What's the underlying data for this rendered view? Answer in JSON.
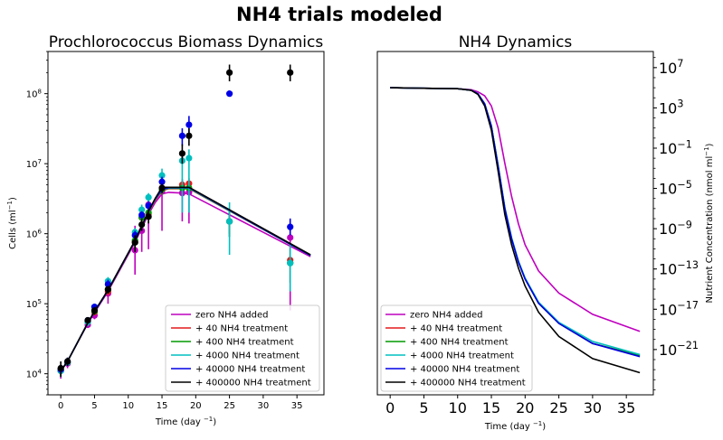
{
  "figure": {
    "suptitle": "NH4 trials modeled"
  },
  "chart_data": [
    {
      "type": "line",
      "title": "Prochlorococcus Biomass Dynamics",
      "xlabel": "Time (day $^{-1}$)",
      "ylabel": "Cells (ml$^{-1}$)",
      "yscale": "log",
      "xlim": [
        -1.9,
        39.0
      ],
      "ylim": [
        5000,
        400000000
      ],
      "xticks": [
        "0",
        "5",
        "10",
        "15",
        "20",
        "25",
        "30",
        "35"
      ],
      "yticks": [
        "10^4",
        "10^5",
        "10^6",
        "10^7",
        "10^8"
      ],
      "legend_position": "lower-right",
      "series": [
        {
          "name": "zero NH4 added",
          "color": "#bf00bf",
          "model_x": [
            0,
            1,
            4,
            5,
            7,
            11,
            12,
            13,
            14,
            15,
            16,
            18,
            19,
            37
          ],
          "model_y": [
            11000,
            15000,
            52000,
            75000,
            150000,
            750000,
            1200000,
            1900000,
            2800000,
            3700000,
            3900000,
            3800000,
            3700000,
            470000
          ],
          "obs_x": [
            0,
            1,
            4,
            5,
            7,
            11,
            12,
            13,
            15,
            18,
            19,
            25,
            34
          ],
          "obs_y": [
            11000,
            14000,
            50000,
            68000,
            140000,
            580000,
            1100000,
            2600000,
            4000000,
            3800000,
            3900000,
            1500000,
            880000
          ],
          "err_low": [
            8500,
            12000,
            45000,
            60000,
            100000,
            260000,
            550000,
            600000,
            1100000,
            1500000,
            1400000,
            900000,
            80000
          ],
          "err_high": [
            13000,
            16000,
            55000,
            76000,
            200000,
            1300000,
            1800000,
            3500000,
            6000000,
            6000000,
            5500000,
            2200000,
            1600000
          ]
        },
        {
          "name": " + 40 NH4 treatment",
          "color": "#e31a1c",
          "model_x": [
            0,
            1,
            4,
            5,
            7,
            11,
            12,
            13,
            14,
            15,
            16,
            18,
            19,
            37
          ],
          "model_y": [
            11000,
            15000,
            53000,
            77000,
            155000,
            780000,
            1250000,
            2000000,
            3000000,
            4100000,
            4400000,
            4400000,
            4400000,
            490000
          ],
          "obs_x": [
            0,
            1,
            4,
            5,
            7,
            11,
            12,
            13,
            15,
            18,
            19,
            25,
            34
          ],
          "obs_y": [
            11500,
            14500,
            56000,
            76000,
            150000,
            760000,
            1700000,
            1900000,
            4500000,
            5000000,
            5200000,
            1500000,
            420000
          ],
          "err_low": [
            9500,
            13000,
            50000,
            68000,
            130000,
            600000,
            1400000,
            1600000,
            3800000,
            4000000,
            4200000,
            1000000,
            200000
          ],
          "err_high": [
            13500,
            16000,
            62000,
            84000,
            170000,
            950000,
            2000000,
            2300000,
            5200000,
            6000000,
            6200000,
            2000000,
            700000
          ]
        },
        {
          "name": " + 400 NH4 treatment",
          "color": "#009900",
          "model_x": [
            0,
            1,
            4,
            5,
            7,
            11,
            12,
            13,
            14,
            15,
            16,
            18,
            19,
            37
          ],
          "model_y": [
            11000,
            15000,
            53000,
            77000,
            155000,
            790000,
            1260000,
            2050000,
            3100000,
            4200000,
            4450000,
            4450000,
            4450000,
            490000
          ],
          "obs_x": [
            0,
            1,
            4,
            5,
            7,
            11,
            12,
            13,
            15,
            18,
            19,
            25,
            34
          ],
          "obs_y": [
            11000,
            14500,
            55000,
            78000,
            160000,
            800000,
            1700000,
            2000000,
            4300000,
            4500000,
            4500000,
            1500000,
            380000
          ],
          "err_low": [
            9500,
            13000,
            50000,
            70000,
            140000,
            650000,
            1400000,
            1700000,
            3600000,
            3800000,
            3800000,
            900000,
            200000
          ],
          "err_high": [
            13000,
            16000,
            60000,
            86000,
            180000,
            950000,
            2000000,
            2400000,
            5000000,
            5200000,
            5200000,
            2200000,
            600000
          ]
        },
        {
          "name": " + 4000 NH4 treatment",
          "color": "#00bfbf",
          "model_x": [
            0,
            1,
            4,
            5,
            7,
            11,
            12,
            13,
            14,
            15,
            16,
            18,
            19,
            37
          ],
          "model_y": [
            11000,
            15000,
            53000,
            77000,
            156000,
            790000,
            1270000,
            2050000,
            3100000,
            4250000,
            4500000,
            4500000,
            4500000,
            490000
          ],
          "obs_x": [
            0,
            1,
            4,
            5,
            7,
            11,
            12,
            13,
            15,
            18,
            19,
            25,
            34
          ],
          "obs_y": [
            11000,
            14500,
            55000,
            90000,
            210000,
            1050000,
            2200000,
            3300000,
            6800000,
            11000000,
            12000000,
            1500000,
            380000
          ],
          "err_low": [
            9000,
            13000,
            48000,
            80000,
            180000,
            900000,
            1800000,
            2800000,
            5000000,
            2000000,
            2000000,
            500000,
            150000
          ],
          "err_high": [
            13000,
            16000,
            62000,
            100000,
            240000,
            1200000,
            2600000,
            3800000,
            8500000,
            15000000,
            16000000,
            2800000,
            700000
          ]
        },
        {
          "name": " + 40000 NH4 treatment",
          "color": "#0000e6",
          "model_x": [
            0,
            1,
            4,
            5,
            7,
            11,
            12,
            13,
            14,
            15,
            16,
            18,
            19,
            37
          ],
          "model_y": [
            11000,
            15000,
            53000,
            77000,
            156000,
            795000,
            1280000,
            2080000,
            3150000,
            4300000,
            4550000,
            4550000,
            4550000,
            490000
          ],
          "obs_x": [
            0,
            1,
            4,
            5,
            7,
            11,
            12,
            13,
            15,
            18,
            19,
            25,
            34
          ],
          "obs_y": [
            11500,
            15000,
            58000,
            90000,
            190000,
            950000,
            1850000,
            2500000,
            5500000,
            25000000,
            36000000,
            100000000,
            1250000
          ],
          "err_low": [
            10000,
            13000,
            52000,
            80000,
            160000,
            800000,
            1600000,
            2100000,
            4500000,
            18000000,
            26000000,
            95000000,
            950000
          ],
          "err_high": [
            13000,
            17000,
            64000,
            100000,
            220000,
            1100000,
            2100000,
            2900000,
            6500000,
            32000000,
            48000000,
            105000000,
            1650000
          ]
        },
        {
          "name": " + 400000 NH4 treatment",
          "color": "#000000",
          "model_x": [
            0,
            1,
            4,
            5,
            7,
            11,
            12,
            13,
            14,
            15,
            16,
            18,
            19,
            37
          ],
          "model_y": [
            11000,
            15000,
            53000,
            78000,
            157000,
            800000,
            1290000,
            2100000,
            3200000,
            4600000,
            4600000,
            4600000,
            4600000,
            500000
          ],
          "obs_x": [
            0,
            1,
            4,
            5,
            7,
            11,
            12,
            13,
            15,
            18,
            19,
            25,
            34
          ],
          "obs_y": [
            12000,
            15000,
            58000,
            80000,
            160000,
            750000,
            1350000,
            1750000,
            4500000,
            14000000,
            25000000,
            200000000,
            200000000
          ],
          "err_low": [
            9000,
            13000,
            52000,
            70000,
            140000,
            550000,
            1100000,
            1400000,
            3800000,
            10000000,
            18000000,
            150000000,
            150000000
          ],
          "err_high": [
            15000,
            17000,
            64000,
            90000,
            180000,
            950000,
            1600000,
            2100000,
            5200000,
            19000000,
            32000000,
            260000000,
            260000000
          ]
        }
      ]
    },
    {
      "type": "line",
      "title": "NH4 Dynamics",
      "xlabel": "Time (day $^{-1}$)",
      "ylabel": "Nutrient Concentration (nmol ml$^{-1}$)",
      "yscale": "log",
      "xlim": [
        -1.9,
        39.0
      ],
      "ylim_log10": [
        -25.5,
        8.6
      ],
      "xticks": [
        "0",
        "5",
        "10",
        "15",
        "20",
        "25",
        "30",
        "35"
      ],
      "yticks": [
        "10^7",
        "10^3",
        "10^-1",
        "10^-5",
        "10^-9",
        "10^-13",
        "10^-17",
        "10^-21"
      ],
      "legend_position": "lower-left",
      "series": [
        {
          "name": "zero NH4 added",
          "color": "#bf00bf",
          "x": [
            0,
            5,
            10,
            12,
            13,
            14,
            15,
            16,
            17,
            18,
            19,
            20,
            22,
            25,
            30,
            37
          ],
          "log10_y": [
            5.0,
            4.95,
            4.9,
            4.8,
            4.6,
            4.2,
            3.2,
            1.0,
            -2.5,
            -5.8,
            -8.5,
            -10.6,
            -13.2,
            -15.4,
            -17.5,
            -19.2
          ]
        },
        {
          "name": " + 40 NH4 treatment",
          "color": "#e31a1c",
          "x": [
            0,
            5,
            10,
            12,
            13,
            14,
            15,
            16,
            17,
            18,
            19,
            20,
            22,
            25,
            30,
            37
          ],
          "log10_y": [
            5.0,
            4.95,
            4.9,
            4.75,
            4.4,
            3.4,
            1.2,
            -2.8,
            -7.0,
            -10.0,
            -12.3,
            -14.0,
            -16.4,
            -18.4,
            -20.4,
            -21.6
          ]
        },
        {
          "name": " + 400 NH4 treatment",
          "color": "#009900",
          "x": [
            0,
            5,
            10,
            12,
            13,
            14,
            15,
            16,
            17,
            18,
            19,
            20,
            22,
            25,
            30,
            37
          ],
          "log10_y": [
            5.0,
            4.95,
            4.9,
            4.75,
            4.4,
            3.4,
            1.2,
            -2.8,
            -7.0,
            -10.0,
            -12.3,
            -14.0,
            -16.4,
            -18.4,
            -20.4,
            -21.6
          ]
        },
        {
          "name": " + 4000 NH4 treatment",
          "color": "#00bfbf",
          "x": [
            0,
            5,
            10,
            12,
            13,
            14,
            15,
            16,
            17,
            18,
            19,
            20,
            22,
            25,
            30,
            37
          ],
          "log10_y": [
            5.0,
            4.95,
            4.9,
            4.75,
            4.4,
            3.4,
            1.2,
            -2.7,
            -6.9,
            -9.9,
            -12.2,
            -13.9,
            -16.3,
            -18.3,
            -20.2,
            -21.5
          ]
        },
        {
          "name": " + 40000 NH4 treatment",
          "color": "#0000e6",
          "x": [
            0,
            5,
            10,
            12,
            13,
            14,
            15,
            16,
            17,
            18,
            19,
            20,
            22,
            25,
            30,
            37
          ],
          "log10_y": [
            5.0,
            4.95,
            4.9,
            4.75,
            4.4,
            3.4,
            1.2,
            -2.8,
            -7.0,
            -10.0,
            -12.3,
            -14.0,
            -16.4,
            -18.4,
            -20.4,
            -21.7
          ]
        },
        {
          "name": " + 400000 NH4 treatment",
          "color": "#000000",
          "x": [
            0,
            5,
            10,
            12,
            13,
            14,
            15,
            16,
            17,
            18,
            19,
            20,
            22,
            25,
            30,
            37
          ],
          "log10_y": [
            5.0,
            4.95,
            4.9,
            4.75,
            4.35,
            3.2,
            0.8,
            -3.3,
            -7.6,
            -10.6,
            -12.9,
            -14.7,
            -17.3,
            -19.7,
            -21.9,
            -23.3
          ]
        }
      ]
    }
  ]
}
